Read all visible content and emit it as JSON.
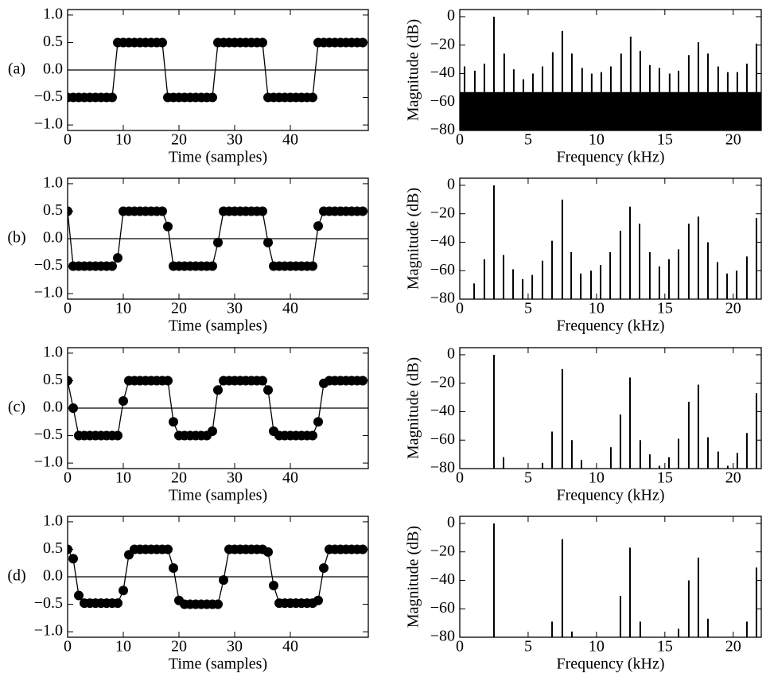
{
  "chart_data": [
    {
      "type": "line",
      "panel_label": "(a)",
      "xlabel": "Time (samples)",
      "xlim": [
        0,
        54
      ],
      "xticks": [
        0,
        10,
        20,
        30,
        40
      ],
      "ylim": [
        -1.1,
        1.1
      ],
      "yticks": [
        {
          "value": -1.0,
          "label": "−1.0"
        },
        {
          "value": -0.5,
          "label": "−0.5"
        },
        {
          "value": 0.0,
          "label": "0.0"
        },
        0.5,
        {
          "value": 1.0,
          "label": "1.0"
        }
      ],
      "hline": 0,
      "color": "#000000",
      "x": [
        0,
        1,
        2,
        3,
        4,
        5,
        6,
        7,
        8,
        9,
        10,
        11,
        12,
        13,
        14,
        15,
        16,
        17,
        18,
        19,
        20,
        21,
        22,
        23,
        24,
        25,
        26,
        27,
        28,
        29,
        30,
        31,
        32,
        33,
        34,
        35,
        36,
        37,
        38,
        39,
        40,
        41,
        42,
        43,
        44,
        45,
        46,
        47,
        48,
        49,
        50,
        51,
        52,
        53
      ],
      "values": [
        -0.5,
        -0.5,
        -0.5,
        -0.5,
        -0.5,
        -0.5,
        -0.5,
        -0.5,
        -0.5,
        0.5,
        0.5,
        0.5,
        0.5,
        0.5,
        0.5,
        0.5,
        0.5,
        0.5,
        -0.5,
        -0.5,
        -0.5,
        -0.5,
        -0.5,
        -0.5,
        -0.5,
        -0.5,
        -0.5,
        0.5,
        0.5,
        0.5,
        0.5,
        0.5,
        0.5,
        0.5,
        0.5,
        0.5,
        -0.5,
        -0.5,
        -0.5,
        -0.5,
        -0.5,
        -0.5,
        -0.5,
        -0.5,
        -0.5,
        0.5,
        0.5,
        0.5,
        0.5,
        0.5,
        0.5,
        0.5,
        0.5,
        0.5
      ]
    },
    {
      "type": "stem",
      "xlabel": "Frequency (kHz)",
      "ylabel": "Magnitude (dB)",
      "xlim": [
        0,
        22.05
      ],
      "xticks": [
        0,
        5,
        10,
        15,
        20
      ],
      "ylim": [
        -80,
        5
      ],
      "yticks": [
        {
          "value": -80,
          "label": "−80"
        },
        {
          "value": -60,
          "label": "−60"
        },
        {
          "value": -40,
          "label": "−40"
        },
        {
          "value": -20,
          "label": "−20"
        },
        0
      ],
      "color": "#000000",
      "area": {
        "x": [
          0,
          22.05
        ],
        "values": [
          -53,
          -53
        ]
      },
      "x": [
        0.35,
        1.1,
        1.8,
        2.5,
        3.25,
        3.95,
        4.65,
        5.35,
        6.05,
        6.8,
        7.5,
        8.2,
        8.95,
        9.65,
        10.35,
        11.05,
        11.8,
        12.5,
        13.2,
        13.9,
        14.6,
        15.35,
        16.0,
        16.75,
        17.45,
        18.15,
        18.9,
        19.6,
        20.3,
        21.0,
        21.7
      ],
      "values": [
        -35,
        -38,
        -33,
        0,
        -26,
        -37,
        -44,
        -40,
        -35,
        -25,
        -10,
        -26,
        -36,
        -40,
        -39,
        -35,
        -26,
        -14,
        -24,
        -34,
        -36,
        -40,
        -38,
        -27,
        -18,
        -26,
        -35,
        -39,
        -39,
        -33,
        -19
      ]
    },
    {
      "type": "line",
      "panel_label": "(b)",
      "xlabel": "Time (samples)",
      "xlim": [
        0,
        54
      ],
      "xticks": [
        0,
        10,
        20,
        30,
        40
      ],
      "ylim": [
        -1.1,
        1.1
      ],
      "yticks": [
        {
          "value": -1.0,
          "label": "−1.0"
        },
        {
          "value": -0.5,
          "label": "−0.5"
        },
        {
          "value": 0.0,
          "label": "0.0"
        },
        0.5,
        {
          "value": 1.0,
          "label": "1.0"
        }
      ],
      "hline": 0,
      "color": "#000000",
      "x": [
        0,
        1,
        2,
        3,
        4,
        5,
        6,
        7,
        8,
        9,
        10,
        11,
        12,
        13,
        14,
        15,
        16,
        17,
        18,
        19,
        20,
        21,
        22,
        23,
        24,
        25,
        26,
        27,
        28,
        29,
        30,
        31,
        32,
        33,
        34,
        35,
        36,
        37,
        38,
        39,
        40,
        41,
        42,
        43,
        44,
        45,
        46,
        47,
        48,
        49,
        50,
        51,
        52,
        53
      ],
      "values": [
        0.5,
        -0.5,
        -0.5,
        -0.5,
        -0.5,
        -0.5,
        -0.5,
        -0.5,
        -0.5,
        -0.35,
        0.5,
        0.5,
        0.5,
        0.5,
        0.5,
        0.5,
        0.5,
        0.5,
        0.22,
        -0.5,
        -0.5,
        -0.5,
        -0.5,
        -0.5,
        -0.5,
        -0.5,
        -0.5,
        -0.07,
        0.5,
        0.5,
        0.5,
        0.5,
        0.5,
        0.5,
        0.5,
        0.5,
        -0.07,
        -0.5,
        -0.5,
        -0.5,
        -0.5,
        -0.5,
        -0.5,
        -0.5,
        -0.5,
        0.23,
        0.5,
        0.5,
        0.5,
        0.5,
        0.5,
        0.5,
        0.5,
        0.5
      ]
    },
    {
      "type": "stem",
      "xlabel": "Frequency (kHz)",
      "ylabel": "Magnitude (dB)",
      "xlim": [
        0,
        22.05
      ],
      "xticks": [
        0,
        5,
        10,
        15,
        20
      ],
      "ylim": [
        -80,
        5
      ],
      "yticks": [
        {
          "value": -80,
          "label": "−80"
        },
        {
          "value": -60,
          "label": "−60"
        },
        {
          "value": -40,
          "label": "−40"
        },
        {
          "value": -20,
          "label": "−20"
        },
        0
      ],
      "color": "#000000",
      "x": [
        1.05,
        1.8,
        2.5,
        3.2,
        3.9,
        4.6,
        5.3,
        6.05,
        6.75,
        7.5,
        8.15,
        8.85,
        9.6,
        10.3,
        11.0,
        11.75,
        12.45,
        13.15,
        13.9,
        14.6,
        15.3,
        16.0,
        16.75,
        17.45,
        18.15,
        18.85,
        19.55,
        20.25,
        21.0,
        21.7
      ],
      "values": [
        -69,
        -52,
        0,
        -49,
        -59,
        -66,
        -63,
        -53,
        -39,
        -10,
        -47,
        -62,
        -60,
        -56,
        -47,
        -32,
        -15,
        -27,
        -47,
        -57,
        -52,
        -45,
        -27,
        -22,
        -40,
        -54,
        -62,
        -60,
        -50,
        -23
      ]
    },
    {
      "type": "line",
      "panel_label": "(c)",
      "xlabel": "Time (samples)",
      "xlim": [
        0,
        54
      ],
      "xticks": [
        0,
        10,
        20,
        30,
        40
      ],
      "ylim": [
        -1.1,
        1.1
      ],
      "yticks": [
        {
          "value": -1.0,
          "label": "−1.0"
        },
        {
          "value": -0.5,
          "label": "−0.5"
        },
        {
          "value": 0.0,
          "label": "0.0"
        },
        0.5,
        {
          "value": 1.0,
          "label": "1.0"
        }
      ],
      "hline": 0,
      "color": "#000000",
      "x": [
        0,
        1,
        2,
        3,
        4,
        5,
        6,
        7,
        8,
        9,
        10,
        11,
        12,
        13,
        14,
        15,
        16,
        17,
        18,
        19,
        20,
        21,
        22,
        23,
        24,
        25,
        26,
        27,
        28,
        29,
        30,
        31,
        32,
        33,
        34,
        35,
        36,
        37,
        38,
        39,
        40,
        41,
        42,
        43,
        44,
        45,
        46,
        47,
        48,
        49,
        50,
        51,
        52,
        53
      ],
      "values": [
        0.5,
        0.0,
        -0.5,
        -0.5,
        -0.5,
        -0.5,
        -0.5,
        -0.5,
        -0.5,
        -0.5,
        0.13,
        0.5,
        0.5,
        0.5,
        0.5,
        0.5,
        0.5,
        0.5,
        0.5,
        -0.25,
        -0.5,
        -0.5,
        -0.5,
        -0.5,
        -0.5,
        -0.5,
        -0.42,
        0.33,
        0.5,
        0.5,
        0.5,
        0.5,
        0.5,
        0.5,
        0.5,
        0.5,
        0.33,
        -0.42,
        -0.5,
        -0.5,
        -0.5,
        -0.5,
        -0.5,
        -0.5,
        -0.5,
        -0.25,
        0.45,
        0.5,
        0.5,
        0.5,
        0.5,
        0.5,
        0.5,
        0.5
      ]
    },
    {
      "type": "stem",
      "xlabel": "Frequency (kHz)",
      "ylabel": "Magnitude (dB)",
      "xlim": [
        0,
        22.05
      ],
      "xticks": [
        0,
        5,
        10,
        15,
        20
      ],
      "ylim": [
        -80,
        5
      ],
      "yticks": [
        {
          "value": -80,
          "label": "−80"
        },
        {
          "value": -60,
          "label": "−60"
        },
        {
          "value": -40,
          "label": "−40"
        },
        {
          "value": -20,
          "label": "−20"
        },
        0
      ],
      "color": "#000000",
      "x": [
        1.75,
        2.5,
        3.2,
        6.05,
        6.75,
        7.5,
        8.2,
        8.9,
        11.05,
        11.75,
        12.45,
        13.2,
        13.9,
        14.6,
        15.3,
        16.0,
        16.75,
        17.45,
        18.15,
        18.9,
        19.6,
        20.3,
        21.0,
        21.7
      ],
      "values": [
        -80,
        0,
        -72,
        -76,
        -54,
        -10,
        -60,
        -74,
        -65,
        -42,
        -16,
        -60,
        -70,
        -78,
        -72,
        -59,
        -33,
        -21,
        -58,
        -68,
        -78,
        -69,
        -55,
        -27
      ]
    },
    {
      "type": "line",
      "panel_label": "(d)",
      "xlabel": "Time (samples)",
      "xlim": [
        0,
        54
      ],
      "xticks": [
        0,
        10,
        20,
        30,
        40
      ],
      "ylim": [
        -1.1,
        1.1
      ],
      "yticks": [
        {
          "value": -1.0,
          "label": "−1.0"
        },
        {
          "value": -0.5,
          "label": "−0.5"
        },
        {
          "value": 0.0,
          "label": "0.0"
        },
        0.5,
        {
          "value": 1.0,
          "label": "1.0"
        }
      ],
      "hline": 0,
      "color": "#000000",
      "x": [
        0,
        1,
        2,
        3,
        4,
        5,
        6,
        7,
        8,
        9,
        10,
        11,
        12,
        13,
        14,
        15,
        16,
        17,
        18,
        19,
        20,
        21,
        22,
        23,
        24,
        25,
        26,
        27,
        28,
        29,
        30,
        31,
        32,
        33,
        34,
        35,
        36,
        37,
        38,
        39,
        40,
        41,
        42,
        43,
        44,
        45,
        46,
        47,
        48,
        49,
        50,
        51,
        52,
        53
      ],
      "values": [
        0.5,
        0.33,
        -0.34,
        -0.48,
        -0.48,
        -0.48,
        -0.48,
        -0.48,
        -0.48,
        -0.48,
        -0.25,
        0.4,
        0.5,
        0.5,
        0.5,
        0.5,
        0.5,
        0.5,
        0.5,
        0.16,
        -0.43,
        -0.5,
        -0.5,
        -0.5,
        -0.5,
        -0.5,
        -0.5,
        -0.5,
        -0.06,
        0.5,
        0.5,
        0.5,
        0.5,
        0.5,
        0.5,
        0.5,
        0.45,
        -0.16,
        -0.48,
        -0.48,
        -0.48,
        -0.48,
        -0.48,
        -0.48,
        -0.48,
        -0.43,
        0.16,
        0.5,
        0.5,
        0.5,
        0.5,
        0.5,
        0.5,
        0.5
      ]
    },
    {
      "type": "stem",
      "xlabel": "Frequency (kHz)",
      "ylabel": "Magnitude (dB)",
      "xlim": [
        0,
        22.05
      ],
      "xticks": [
        0,
        5,
        10,
        15,
        20
      ],
      "ylim": [
        -80,
        5
      ],
      "yticks": [
        {
          "value": -80,
          "label": "−80"
        },
        {
          "value": -60,
          "label": "−60"
        },
        {
          "value": -40,
          "label": "−40"
        },
        {
          "value": -20,
          "label": "−20"
        },
        0
      ],
      "color": "#000000",
      "x": [
        2.5,
        6.75,
        7.5,
        8.2,
        11.75,
        12.45,
        13.2,
        16.0,
        16.75,
        17.45,
        18.15,
        21.0,
        21.7
      ],
      "values": [
        0,
        -69,
        -11,
        -76,
        -51,
        -17,
        -69,
        -74,
        -40,
        -24,
        -67,
        -69,
        -31
      ]
    }
  ]
}
